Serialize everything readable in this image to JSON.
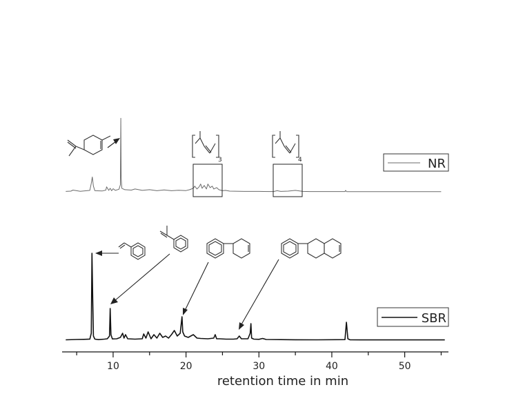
{
  "chart_data": {
    "type": "line",
    "xlabel": "retention time in min",
    "xlim": [
      3,
      56
    ],
    "xticks": [
      10,
      20,
      30,
      40,
      50
    ],
    "legend_placement": "right",
    "series": [
      {
        "name": "NR",
        "color": "#6a6a6a",
        "width": 1,
        "baseline": 0,
        "x": [
          3.5,
          4.2,
          4.5,
          5.5,
          6.8,
          7.0,
          7.15,
          7.3,
          7.5,
          8.5,
          9.0,
          9.1,
          9.4,
          9.6,
          9.8,
          10.0,
          10.3,
          10.8,
          11.0,
          11.05,
          11.1,
          11.2,
          11.6,
          12.5,
          13.0,
          14.0,
          15.0,
          16.0,
          17.0,
          18.0,
          19.0,
          20.0,
          20.5,
          21.0,
          21.2,
          21.5,
          21.8,
          22.0,
          22.2,
          22.5,
          22.8,
          23.0,
          23.3,
          23.6,
          23.8,
          24.2,
          24.5,
          25.0,
          25.4,
          26.0,
          28.0,
          30.0,
          32.0,
          32.5,
          33.0,
          34.0,
          35.0,
          36.0,
          37.0,
          40.0,
          41.8,
          41.9,
          42.0,
          42.1,
          44.0,
          47.0,
          50.0,
          55.0
        ],
        "y": [
          0.3,
          0.5,
          1.2,
          0.4,
          1.0,
          6.0,
          10.5,
          4.0,
          0.8,
          0.6,
          1.2,
          3.5,
          1.0,
          2.5,
          0.8,
          2.2,
          1.0,
          1.8,
          5.0,
          52.0,
          10.0,
          2.5,
          1.5,
          1.2,
          2.0,
          1.0,
          1.5,
          0.8,
          1.3,
          0.8,
          1.1,
          0.9,
          1.5,
          2.5,
          4.0,
          2.0,
          3.5,
          5.5,
          2.5,
          4.5,
          2.0,
          5.5,
          3.0,
          4.0,
          2.0,
          3.0,
          1.5,
          0.8,
          1.0,
          0.5,
          0.3,
          0.3,
          0.2,
          0.8,
          0.3,
          0.5,
          1.0,
          0.3,
          0.2,
          0.2,
          0.2,
          1.0,
          0.2,
          0.1,
          0.1,
          0.1,
          0.1,
          0.1
        ]
      },
      {
        "name": "SBR",
        "color": "#111111",
        "width": 1.6,
        "baseline": 0,
        "x": [
          3.5,
          5.0,
          6.0,
          6.8,
          7.0,
          7.1,
          7.2,
          7.3,
          7.5,
          8.0,
          8.8,
          9.2,
          9.5,
          9.6,
          9.7,
          9.9,
          10.5,
          11.0,
          11.3,
          11.5,
          11.7,
          12.0,
          13.0,
          14.0,
          14.2,
          14.5,
          14.8,
          15.2,
          15.6,
          16.0,
          16.4,
          16.8,
          17.2,
          17.6,
          18.0,
          18.4,
          18.8,
          19.2,
          19.45,
          19.55,
          19.8,
          20.3,
          21.0,
          21.5,
          22.0,
          23.0,
          23.8,
          24.0,
          24.2,
          24.6,
          25.5,
          26.5,
          27.0,
          27.3,
          27.6,
          28.0,
          28.5,
          28.8,
          28.9,
          29.0,
          29.3,
          30.0,
          30.5,
          31.0,
          33.0,
          35.0,
          38.0,
          41.8,
          42.0,
          42.2,
          42.5,
          44.0,
          47.0,
          50.0,
          55.5
        ],
        "y": [
          0.5,
          1.0,
          1.2,
          1.5,
          10.0,
          126.0,
          60.0,
          6.0,
          1.5,
          0.8,
          1.5,
          2.0,
          6.0,
          46.0,
          8.0,
          1.8,
          2.0,
          4.0,
          10.0,
          3.0,
          8.0,
          2.0,
          1.5,
          2.0,
          9.0,
          3.0,
          12.0,
          2.0,
          8.0,
          3.0,
          10.0,
          4.0,
          6.0,
          3.0,
          8.0,
          14.0,
          6.0,
          10.0,
          34.0,
          12.0,
          6.0,
          4.0,
          8.0,
          3.0,
          2.5,
          2.0,
          3.0,
          8.0,
          2.0,
          2.0,
          1.5,
          1.5,
          2.0,
          6.0,
          2.0,
          2.0,
          2.0,
          10.0,
          24.0,
          3.0,
          1.5,
          1.2,
          2.5,
          1.0,
          0.8,
          0.6,
          0.5,
          0.8,
          26.0,
          2.0,
          0.5,
          0.4,
          0.4,
          0.4,
          0.4
        ]
      }
    ],
    "annotations": [
      {
        "type": "subscript",
        "text": "3"
      },
      {
        "type": "subscript",
        "text": "4"
      }
    ]
  }
}
